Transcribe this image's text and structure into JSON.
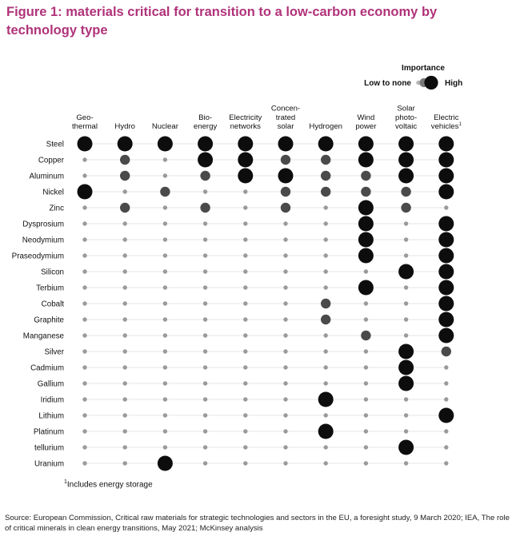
{
  "title": "Figure 1: materials critical for transition to a low-carbon economy by technology type",
  "chart_data": {
    "type": "matrix-bubble",
    "legend": {
      "title": "Importance",
      "low_label": "Low to none",
      "high_label": "High",
      "levels": [
        1,
        2,
        3
      ]
    },
    "columns": [
      [
        "Geo-",
        "thermal"
      ],
      [
        "Hydro"
      ],
      [
        "Nuclear"
      ],
      [
        "Bio-",
        "energy"
      ],
      [
        "Electricity",
        "networks"
      ],
      [
        "Concen-",
        "trated",
        "solar"
      ],
      [
        "Hydrogen"
      ],
      [
        "Wind",
        "power"
      ],
      [
        "Solar",
        "photo-",
        "voltaic"
      ],
      [
        "Electric",
        "vehicles"
      ]
    ],
    "column_footnote_mark": "1",
    "rows": [
      {
        "name": "Steel",
        "values": [
          3,
          3,
          3,
          3,
          3,
          3,
          3,
          3,
          3,
          3
        ]
      },
      {
        "name": "Copper",
        "values": [
          1,
          2,
          1,
          3,
          3,
          2,
          2,
          3,
          3,
          3
        ]
      },
      {
        "name": "Aluminum",
        "values": [
          1,
          2,
          1,
          2,
          3,
          3,
          2,
          2,
          3,
          3
        ]
      },
      {
        "name": "Nickel",
        "values": [
          3,
          1,
          2,
          1,
          1,
          2,
          2,
          2,
          2,
          3
        ]
      },
      {
        "name": "Zinc",
        "values": [
          1,
          2,
          1,
          2,
          1,
          2,
          1,
          3,
          2,
          1
        ]
      },
      {
        "name": "Dysprosium",
        "values": [
          1,
          1,
          1,
          1,
          1,
          1,
          1,
          3,
          1,
          3
        ]
      },
      {
        "name": "Neodymium",
        "values": [
          1,
          1,
          1,
          1,
          1,
          1,
          1,
          3,
          1,
          3
        ]
      },
      {
        "name": "Praseodymium",
        "values": [
          1,
          1,
          1,
          1,
          1,
          1,
          1,
          3,
          1,
          3
        ]
      },
      {
        "name": "Silicon",
        "values": [
          1,
          1,
          1,
          1,
          1,
          1,
          1,
          1,
          3,
          3
        ]
      },
      {
        "name": "Terbium",
        "values": [
          1,
          1,
          1,
          1,
          1,
          1,
          1,
          3,
          1,
          3
        ]
      },
      {
        "name": "Cobalt",
        "values": [
          1,
          1,
          1,
          1,
          1,
          1,
          2,
          1,
          1,
          3
        ]
      },
      {
        "name": "Graphite",
        "values": [
          1,
          1,
          1,
          1,
          1,
          1,
          2,
          1,
          1,
          3
        ]
      },
      {
        "name": "Manganese",
        "values": [
          1,
          1,
          1,
          1,
          1,
          1,
          1,
          2,
          1,
          3
        ]
      },
      {
        "name": "Silver",
        "values": [
          1,
          1,
          1,
          1,
          1,
          1,
          1,
          1,
          3,
          2
        ]
      },
      {
        "name": "Cadmium",
        "values": [
          1,
          1,
          1,
          1,
          1,
          1,
          1,
          1,
          3,
          1
        ]
      },
      {
        "name": "Gallium",
        "values": [
          1,
          1,
          1,
          1,
          1,
          1,
          1,
          1,
          3,
          1
        ]
      },
      {
        "name": "Iridium",
        "values": [
          1,
          1,
          1,
          1,
          1,
          1,
          3,
          1,
          1,
          1
        ]
      },
      {
        "name": "Lithium",
        "values": [
          1,
          1,
          1,
          1,
          1,
          1,
          1,
          1,
          1,
          3
        ]
      },
      {
        "name": "Platinum",
        "values": [
          1,
          1,
          1,
          1,
          1,
          1,
          3,
          1,
          1,
          1
        ]
      },
      {
        "name": "tellurium",
        "values": [
          1,
          1,
          1,
          1,
          1,
          1,
          1,
          1,
          3,
          1
        ]
      },
      {
        "name": "Uranium",
        "values": [
          1,
          1,
          3,
          1,
          1,
          1,
          1,
          1,
          1,
          1
        ]
      }
    ],
    "footnote_mark": "1",
    "footnote_text": "Includes energy storage"
  },
  "source": "Source: European Commission, Critical raw materials for strategic technologies and sectors in the EU, a foresight study, 9 March 2020; IEA, The role of critical minerals in clean energy transitions, May 2021; McKinsey analysis",
  "colors": {
    "title": "#b0337a",
    "high": "#0d0d0d",
    "medium": "#4a4a4a",
    "low": "#9a9a9a",
    "row_line": "#e6e6e6"
  }
}
